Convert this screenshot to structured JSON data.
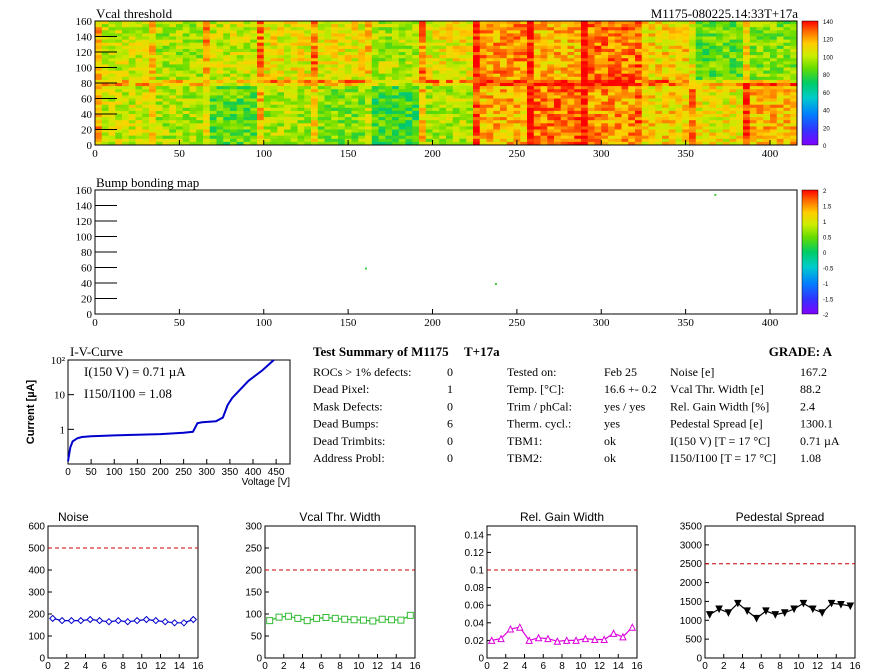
{
  "header": {
    "run_id": "M1175-080225.14:33T+17a"
  },
  "colors": {
    "axis": "#000000",
    "iv_curve": "#0000cc",
    "noise_series": "#0000cc",
    "vcal_series": "#33bb33",
    "gain_series": "#dd00dd",
    "pedestal_series": "#000000",
    "threshold_line": "#cc0000"
  },
  "summary": {
    "title": "Test Summary of M1175",
    "temp_tag": "T+17a",
    "grade": "GRADE:  A",
    "col1": [
      {
        "label": "ROCs > 1% defects:",
        "value": "0"
      },
      {
        "label": "Dead Pixel:",
        "value": "1"
      },
      {
        "label": "Mask Defects:",
        "value": "0"
      },
      {
        "label": "Dead Bumps:",
        "value": "6"
      },
      {
        "label": "Dead Trimbits:",
        "value": "0"
      },
      {
        "label": "Address Probl:",
        "value": "0"
      }
    ],
    "col2": [
      {
        "label": "Tested on:",
        "value": "Feb 25"
      },
      {
        "label": "Temp. [°C]:",
        "value": "16.6 +- 0.2"
      },
      {
        "label": "Trim / phCal:",
        "value": "yes / yes"
      },
      {
        "label": "Therm. cycl.:",
        "value": "yes"
      },
      {
        "label": "TBM1:",
        "value": "ok"
      },
      {
        "label": "TBM2:",
        "value": "ok"
      }
    ],
    "col3": [
      {
        "label": "Noise [e]",
        "value": "167.2"
      },
      {
        "label": "Vcal Thr. Width [e]",
        "value": "88.2"
      },
      {
        "label": "Rel. Gain Width [%]",
        "value": "2.4"
      },
      {
        "label": "Pedestal Spread [e]",
        "value": "1300.1"
      },
      {
        "label": "I(150 V) [T = 17 °C]",
        "value": "0.71 µA"
      },
      {
        "label": "I150/I100  [T = 17 °C]",
        "value": "1.08"
      }
    ]
  },
  "chart_data": [
    {
      "type": "heatmap",
      "title": "Vcal threshold",
      "xlim": [
        0,
        416
      ],
      "ylim": [
        0,
        160
      ],
      "xticks": [
        0,
        50,
        100,
        150,
        200,
        250,
        300,
        350,
        400
      ],
      "yticks": [
        0,
        20,
        40,
        60,
        80,
        100,
        120,
        140,
        160
      ],
      "colorbar_ticks": [
        0,
        20,
        40,
        60,
        80,
        100,
        120,
        140
      ],
      "roc_means_bottom": [
        100,
        95,
        85,
        95,
        90,
        80,
        95,
        115,
        125,
        120,
        110,
        105,
        115
      ],
      "roc_means_top": [
        100,
        95,
        100,
        105,
        105,
        95,
        105,
        120,
        115,
        125,
        110,
        85,
        90
      ]
    },
    {
      "type": "heatmap",
      "title": "Bump bonding map",
      "xlim": [
        0,
        416
      ],
      "ylim": [
        0,
        160
      ],
      "xticks": [
        0,
        50,
        100,
        150,
        200,
        250,
        300,
        350,
        400
      ],
      "yticks": [
        0,
        20,
        40,
        60,
        80,
        100,
        120,
        140,
        160
      ],
      "colorbar_ticks": [
        2,
        1.5,
        1,
        0.5,
        0,
        -0.5,
        -1,
        -1.5,
        -2
      ],
      "points": [
        {
          "x": 367,
          "y": 155
        },
        {
          "x": 160,
          "y": 60
        },
        {
          "x": 237,
          "y": 40
        }
      ]
    },
    {
      "type": "line",
      "title": "I-V-Curve",
      "xlabel": "Voltage [V]",
      "ylabel": "Current [µA]",
      "xlim": [
        0,
        480
      ],
      "ylim": [
        0.1,
        100
      ],
      "yscale": "log",
      "xticks": [
        0,
        50,
        100,
        150,
        200,
        250,
        300,
        350,
        400,
        450
      ],
      "yticks": [
        {
          "v": 1,
          "label": "1"
        },
        {
          "v": 10,
          "label": "10"
        },
        {
          "v": 100,
          "label": "10²"
        }
      ],
      "annotation1": "I(150 V) = 0.71 µA",
      "annotation2": "I150/I100 =  1.08",
      "x": [
        0,
        5,
        10,
        20,
        30,
        50,
        80,
        100,
        150,
        200,
        250,
        270,
        280,
        290,
        320,
        335,
        345,
        355,
        370,
        390,
        420,
        445
      ],
      "y": [
        0.12,
        0.3,
        0.45,
        0.55,
        0.6,
        0.63,
        0.65,
        0.67,
        0.7,
        0.73,
        0.8,
        0.85,
        1.5,
        1.6,
        1.7,
        2.2,
        5,
        8,
        13,
        25,
        50,
        100
      ]
    },
    {
      "type": "line",
      "title": "Noise",
      "xlim": [
        0,
        16
      ],
      "ylim": [
        0,
        600
      ],
      "xticks": [
        0,
        2,
        4,
        6,
        8,
        10,
        12,
        14,
        16
      ],
      "yticks": [
        0,
        100,
        200,
        300,
        400,
        500,
        600
      ],
      "threshold": 500,
      "marker": "diamond",
      "x": [
        0,
        1,
        2,
        3,
        4,
        5,
        6,
        7,
        8,
        9,
        10,
        11,
        12,
        13,
        14,
        15
      ],
      "values": [
        180,
        170,
        170,
        170,
        175,
        170,
        165,
        170,
        165,
        170,
        175,
        170,
        165,
        160,
        160,
        175
      ]
    },
    {
      "type": "line",
      "title": "Vcal Thr. Width",
      "xlim": [
        0,
        16
      ],
      "ylim": [
        0,
        300
      ],
      "xticks": [
        0,
        2,
        4,
        6,
        8,
        10,
        12,
        14,
        16
      ],
      "yticks": [
        0,
        50,
        100,
        150,
        200,
        250,
        300
      ],
      "threshold": 200,
      "marker": "square",
      "x": [
        0,
        1,
        2,
        3,
        4,
        5,
        6,
        7,
        8,
        9,
        10,
        11,
        12,
        13,
        14,
        15
      ],
      "values": [
        85,
        93,
        95,
        90,
        85,
        90,
        92,
        90,
        88,
        87,
        86,
        84,
        88,
        87,
        86,
        97
      ]
    },
    {
      "type": "line",
      "title": "Rel. Gain Width",
      "xlim": [
        0,
        16
      ],
      "ylim": [
        0,
        0.15
      ],
      "xticks": [
        0,
        2,
        4,
        6,
        8,
        10,
        12,
        14,
        16
      ],
      "yticks": [
        0,
        0.02,
        0.04,
        0.06,
        0.08,
        0.1,
        0.12,
        0.14
      ],
      "threshold": 0.1,
      "marker": "triangle",
      "x": [
        0,
        1,
        2,
        3,
        4,
        5,
        6,
        7,
        8,
        9,
        10,
        11,
        12,
        13,
        14,
        15
      ],
      "values": [
        0.02,
        0.022,
        0.033,
        0.035,
        0.02,
        0.023,
        0.022,
        0.019,
        0.02,
        0.02,
        0.022,
        0.021,
        0.021,
        0.028,
        0.024,
        0.035
      ]
    },
    {
      "type": "line",
      "title": "Pedestal Spread",
      "xlim": [
        0,
        16
      ],
      "ylim": [
        0,
        3500
      ],
      "xticks": [
        0,
        2,
        4,
        6,
        8,
        10,
        12,
        14,
        16
      ],
      "yticks": [
        0,
        500,
        1000,
        1500,
        2000,
        2500,
        3000,
        3500
      ],
      "threshold": 2500,
      "marker": "triangle-down",
      "x": [
        0,
        1,
        2,
        3,
        4,
        5,
        6,
        7,
        8,
        9,
        10,
        11,
        12,
        13,
        14,
        15
      ],
      "values": [
        1150,
        1300,
        1200,
        1450,
        1250,
        1050,
        1250,
        1150,
        1200,
        1300,
        1450,
        1300,
        1200,
        1450,
        1420,
        1380
      ]
    }
  ]
}
